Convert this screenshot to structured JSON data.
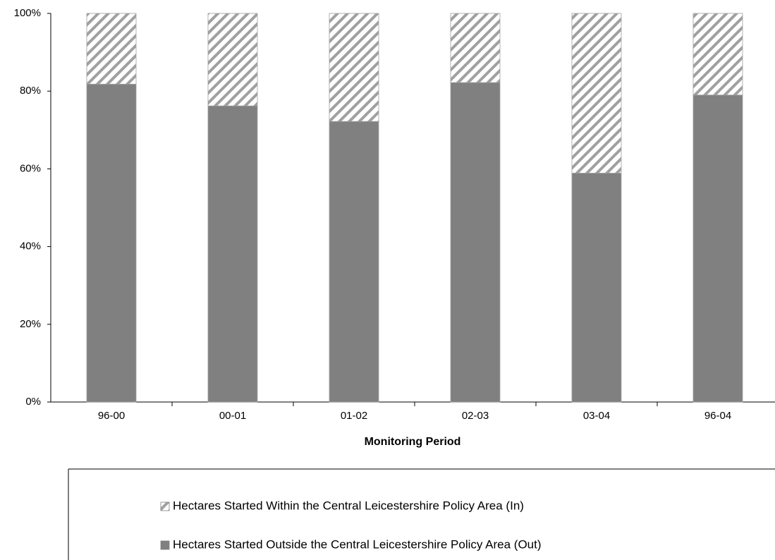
{
  "chart_data": {
    "type": "stacked_bar_percent",
    "x_label": "Monitoring Period",
    "categories": [
      "96-00",
      "00-01",
      "01-02",
      "02-03",
      "03-04",
      "96-04"
    ],
    "series": [
      {
        "name": "Hectares Started Within the Central Leicestershire Policy Area (In)",
        "color": "#a0a0a0",
        "pattern": "hatch",
        "values": [
          18.2,
          23.8,
          27.8,
          17.8,
          41.1,
          21.0
        ]
      },
      {
        "name": "Hectares Started Outside the Central Leicestershire Policy Area (Out)",
        "color": "#808080",
        "pattern": "solid",
        "values": [
          81.8,
          76.2,
          72.2,
          82.2,
          58.9,
          79.0
        ]
      }
    ],
    "ylim": [
      0,
      100
    ],
    "yticks": [
      {
        "value": 0,
        "label": "0%"
      },
      {
        "value": 20,
        "label": "20%"
      },
      {
        "value": 40,
        "label": "40%"
      },
      {
        "value": 60,
        "label": "60%"
      },
      {
        "value": 80,
        "label": "80%"
      },
      {
        "value": 100,
        "label": "100%"
      }
    ],
    "grid": false,
    "legend": "bottom"
  }
}
